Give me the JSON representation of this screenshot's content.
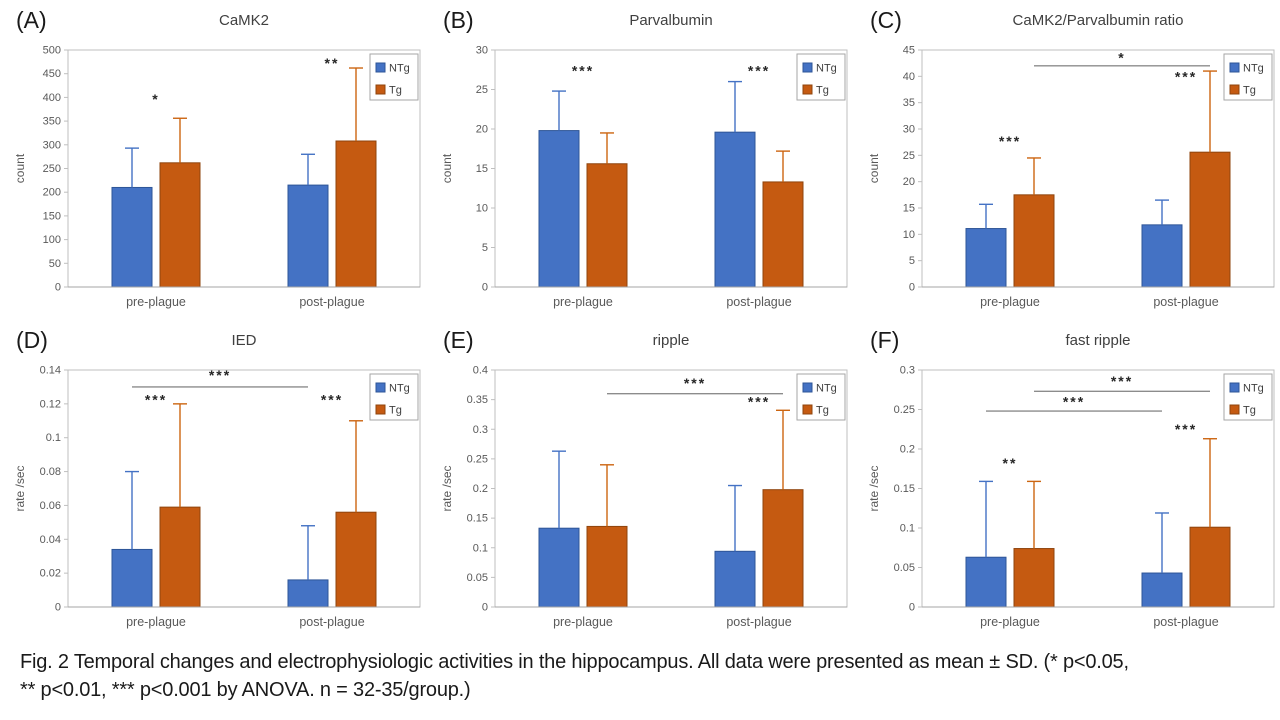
{
  "caption": {
    "line1": "Fig. 2 Temporal changes and electrophysiologic activities in the hippocampus. All data were presented as mean ± SD. (* p<0.05,",
    "line2": "** p<0.01, *** p<0.001 by ANOVA. n = 32-35/group.)"
  },
  "colors": {
    "plot_border": "#BFBFBF",
    "axis_line": "#A6A6A6",
    "tick_text": "#595959",
    "title_text": "#404040",
    "panel_letter": "#1A1A1A",
    "star_text": "#262626",
    "bracket_line": "#8C8C8C",
    "legend_border": "#A6A6A6",
    "legend_text": "#404040",
    "background": "#FFFFFF"
  },
  "series_styles": {
    "NTg": {
      "fill": "#4472C4",
      "border": "#2E5597",
      "whisker": "#4472C4"
    },
    "Tg": {
      "fill": "#C55A11",
      "border": "#8F440D",
      "whisker": "#CC6511"
    }
  },
  "legend": {
    "labels": [
      "NTg",
      "Tg"
    ]
  },
  "chart_data": [
    {
      "name": "camk2",
      "panel_label": "(A)",
      "title": "CaMK2",
      "type": "bar",
      "ylabel": "count",
      "ylim": [
        0,
        500
      ],
      "ytick_values": [
        0,
        50,
        100,
        150,
        200,
        250,
        300,
        350,
        400,
        450,
        500
      ],
      "ytick_labels": [
        "0",
        "50",
        "100",
        "150",
        "200",
        "250",
        "300",
        "350",
        "400",
        "450",
        "500"
      ],
      "categories": [
        "pre-plague",
        "post-plague"
      ],
      "series": [
        {
          "name": "NTg",
          "values": [
            210,
            215
          ],
          "error_plus": [
            83,
            65
          ]
        },
        {
          "name": "Tg",
          "values": [
            262,
            308
          ],
          "error_plus": [
            94,
            154
          ]
        }
      ],
      "stars": [
        {
          "text": "*",
          "group": 0,
          "y": 395
        },
        {
          "text": "**",
          "group": 1,
          "y": 470
        }
      ],
      "brackets": []
    },
    {
      "name": "parvalbumin",
      "panel_label": "(B)",
      "title": "Parvalbumin",
      "type": "bar",
      "ylabel": "count",
      "ylim": [
        0,
        30
      ],
      "ytick_values": [
        0,
        5,
        10,
        15,
        20,
        25,
        30
      ],
      "ytick_labels": [
        "0",
        "5",
        "10",
        "15",
        "20",
        "25",
        "30"
      ],
      "categories": [
        "pre-plague",
        "post-plague"
      ],
      "series": [
        {
          "name": "NTg",
          "values": [
            19.8,
            19.6
          ],
          "error_plus": [
            5.0,
            6.4
          ]
        },
        {
          "name": "Tg",
          "values": [
            15.6,
            13.3
          ],
          "error_plus": [
            3.9,
            3.9
          ]
        }
      ],
      "stars": [
        {
          "text": "***",
          "group": 0,
          "y": 27.3
        },
        {
          "text": "***",
          "group": 1,
          "y": 27.3
        }
      ],
      "brackets": []
    },
    {
      "name": "camk2-parvalbumin-ratio",
      "panel_label": "(C)",
      "title": "CaMK2/Parvalbumin ratio",
      "type": "bar",
      "ylabel": "count",
      "ylim": [
        0,
        45
      ],
      "ytick_values": [
        0,
        5,
        10,
        15,
        20,
        25,
        30,
        35,
        40,
        45
      ],
      "ytick_labels": [
        "0",
        "5",
        "10",
        "15",
        "20",
        "25",
        "30",
        "35",
        "40",
        "45"
      ],
      "categories": [
        "pre-plague",
        "post-plague"
      ],
      "series": [
        {
          "name": "NTg",
          "values": [
            11.1,
            11.8
          ],
          "error_plus": [
            4.6,
            4.7
          ]
        },
        {
          "name": "Tg",
          "values": [
            17.5,
            25.6
          ],
          "error_plus": [
            7.0,
            15.4
          ]
        }
      ],
      "stars": [
        {
          "text": "***",
          "group": 0,
          "y": 27.5
        },
        {
          "text": "***",
          "group": 1,
          "y": 39.8
        }
      ],
      "brackets": [
        {
          "text": "*",
          "from_group": 0,
          "from_series": "Tg",
          "to_group": 1,
          "to_series": "Tg",
          "y": 42.0,
          "text_y": 43.4
        }
      ]
    },
    {
      "name": "ied",
      "panel_label": "(D)",
      "title": "IED",
      "type": "bar",
      "ylabel": "rate /sec",
      "ylim": [
        0,
        0.14
      ],
      "ytick_values": [
        0,
        0.02,
        0.04,
        0.06,
        0.08,
        0.1,
        0.12,
        0.14
      ],
      "ytick_labels": [
        "0",
        "0.02",
        "0.04",
        "0.06",
        "0.08",
        "0.1",
        "0.12",
        "0.14"
      ],
      "categories": [
        "pre-plague",
        "post-plague"
      ],
      "series": [
        {
          "name": "NTg",
          "values": [
            0.034,
            0.016
          ],
          "error_plus": [
            0.046,
            0.032
          ]
        },
        {
          "name": "Tg",
          "values": [
            0.059,
            0.056
          ],
          "error_plus": [
            0.061,
            0.054
          ]
        }
      ],
      "stars": [
        {
          "text": "***",
          "group": 0,
          "y": 0.122
        },
        {
          "text": "***",
          "group": 1,
          "y": 0.122
        }
      ],
      "brackets": [
        {
          "text": "***",
          "from_group": 0,
          "from_series": "NTg",
          "to_group": 1,
          "to_series": "NTg",
          "y": 0.13,
          "text_y": 0.1365
        }
      ]
    },
    {
      "name": "ripple",
      "panel_label": "(E)",
      "title": "ripple",
      "type": "bar",
      "ylabel": "rate /sec",
      "ylim": [
        0,
        0.4
      ],
      "ytick_values": [
        0,
        0.05,
        0.1,
        0.15,
        0.2,
        0.25,
        0.3,
        0.35,
        0.4
      ],
      "ytick_labels": [
        "0",
        "0.05",
        "0.1",
        "0.15",
        "0.2",
        "0.25",
        "0.3",
        "0.35",
        "0.4"
      ],
      "categories": [
        "pre-plague",
        "post-plague"
      ],
      "series": [
        {
          "name": "NTg",
          "values": [
            0.133,
            0.094
          ],
          "error_plus": [
            0.13,
            0.111
          ]
        },
        {
          "name": "Tg",
          "values": [
            0.136,
            0.198
          ],
          "error_plus": [
            0.104,
            0.134
          ]
        }
      ],
      "stars": [
        {
          "text": "***",
          "group": 1,
          "y": 0.345
        }
      ],
      "brackets": [
        {
          "text": "***",
          "from_group": 0,
          "from_series": "Tg",
          "to_group": 1,
          "to_series": "Tg",
          "y": 0.36,
          "text_y": 0.376
        }
      ]
    },
    {
      "name": "fast-ripple",
      "panel_label": "(F)",
      "title": "fast ripple",
      "type": "bar",
      "ylabel": "rate /sec",
      "ylim": [
        0,
        0.3
      ],
      "ytick_values": [
        0,
        0.05,
        0.1,
        0.15,
        0.2,
        0.25,
        0.3
      ],
      "ytick_labels": [
        "0",
        "0.05",
        "0.1",
        "0.15",
        "0.2",
        "0.25",
        "0.3"
      ],
      "categories": [
        "pre-plague",
        "post-plague"
      ],
      "series": [
        {
          "name": "NTg",
          "values": [
            0.063,
            0.043
          ],
          "error_plus": [
            0.096,
            0.076
          ]
        },
        {
          "name": "Tg",
          "values": [
            0.074,
            0.101
          ],
          "error_plus": [
            0.085,
            0.112
          ]
        }
      ],
      "stars": [
        {
          "text": "**",
          "group": 0,
          "y": 0.181
        },
        {
          "text": "***",
          "group": 1,
          "y": 0.224
        }
      ],
      "brackets": [
        {
          "text": "***",
          "from_group": 0,
          "from_series": "NTg",
          "to_group": 1,
          "to_series": "NTg",
          "y": 0.248,
          "text_y": 0.259
        },
        {
          "text": "***",
          "from_group": 0,
          "from_series": "Tg",
          "to_group": 1,
          "to_series": "Tg",
          "y": 0.273,
          "text_y": 0.285
        }
      ]
    }
  ]
}
